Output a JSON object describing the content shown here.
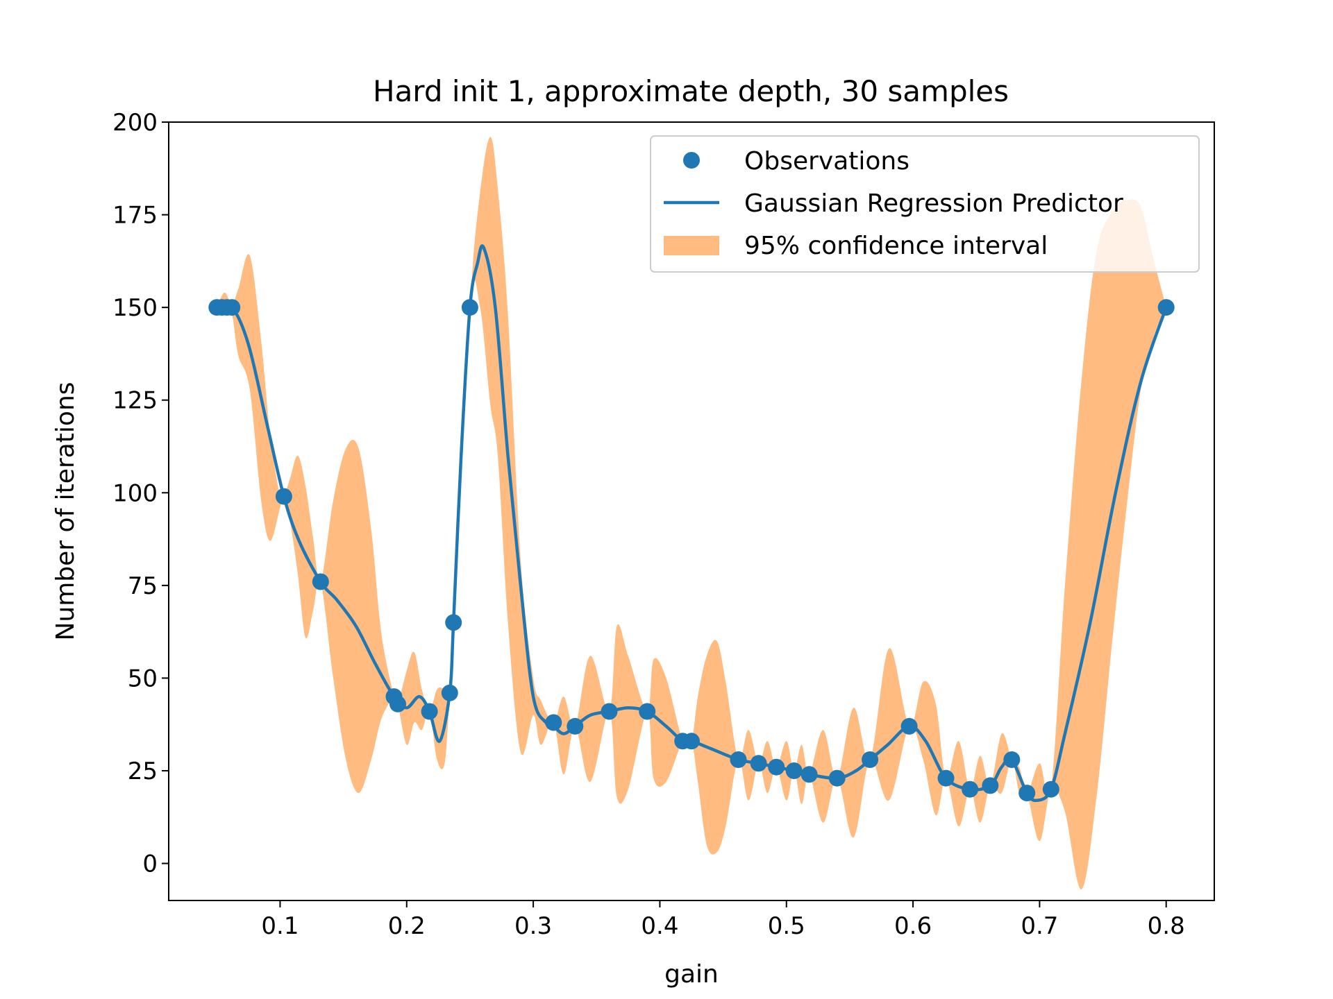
{
  "chart_data": {
    "type": "line",
    "title": "Hard init 1, approximate depth, 30 samples",
    "xlabel": "gain",
    "ylabel": "Number of iterations",
    "xlim": [
      0.012,
      0.838
    ],
    "ylim": [
      -10,
      200
    ],
    "xticks": [
      0.1,
      0.2,
      0.3,
      0.4,
      0.5,
      0.6,
      0.7,
      0.8
    ],
    "xtick_labels": [
      "0.1",
      "0.2",
      "0.3",
      "0.4",
      "0.5",
      "0.6",
      "0.7",
      "0.8"
    ],
    "yticks": [
      0,
      25,
      50,
      75,
      100,
      125,
      150,
      175,
      200
    ],
    "ytick_labels": [
      "0",
      "25",
      "50",
      "75",
      "100",
      "125",
      "150",
      "175",
      "200"
    ],
    "grid": false,
    "legend": {
      "position": "upper right",
      "entries": [
        {
          "label": "Observations",
          "kind": "marker"
        },
        {
          "label": "Gaussian Regression Predictor",
          "kind": "line"
        },
        {
          "label": "95% confidence interval",
          "kind": "patch"
        }
      ]
    },
    "colors": {
      "observations": "#1f77b4",
      "predictor": "#1f77b4",
      "confidence": "#ffbb80"
    },
    "observations": {
      "x": [
        0.05,
        0.054,
        0.058,
        0.062,
        0.103,
        0.132,
        0.19,
        0.193,
        0.218,
        0.234,
        0.237,
        0.25,
        0.316,
        0.333,
        0.36,
        0.39,
        0.418,
        0.425,
        0.462,
        0.478,
        0.492,
        0.506,
        0.518,
        0.54,
        0.566,
        0.597,
        0.626,
        0.645,
        0.661,
        0.678,
        0.69,
        0.709,
        0.8
      ],
      "y": [
        150,
        150,
        150,
        150,
        99,
        76,
        45,
        43,
        41,
        46,
        65,
        150,
        38,
        37,
        41,
        41,
        33,
        33,
        28,
        27,
        26,
        25,
        24,
        23,
        28,
        37,
        23,
        20,
        21,
        28,
        19,
        20,
        150
      ]
    },
    "predictor": {
      "x": [
        0.05,
        0.062,
        0.075,
        0.09,
        0.103,
        0.115,
        0.132,
        0.145,
        0.16,
        0.175,
        0.19,
        0.2,
        0.21,
        0.218,
        0.226,
        0.234,
        0.237,
        0.243,
        0.25,
        0.256,
        0.261,
        0.27,
        0.28,
        0.29,
        0.3,
        0.31,
        0.316,
        0.324,
        0.333,
        0.345,
        0.36,
        0.375,
        0.39,
        0.405,
        0.418,
        0.425,
        0.44,
        0.462,
        0.478,
        0.492,
        0.506,
        0.518,
        0.54,
        0.555,
        0.566,
        0.58,
        0.597,
        0.61,
        0.626,
        0.645,
        0.661,
        0.67,
        0.678,
        0.69,
        0.698,
        0.709,
        0.72,
        0.74,
        0.76,
        0.78,
        0.8
      ],
      "y": [
        150,
        150,
        140,
        118,
        99,
        87,
        76,
        71,
        64,
        54,
        45,
        42,
        45,
        41,
        33,
        46,
        65,
        110,
        150,
        162,
        166,
        150,
        110,
        75,
        45,
        38,
        37,
        35,
        37,
        40,
        41,
        42,
        41,
        37,
        33,
        33,
        31,
        28,
        27,
        26,
        25,
        24,
        23,
        25,
        28,
        32,
        37,
        33,
        23,
        20,
        21,
        26,
        28,
        19,
        17,
        20,
        35,
        65,
        100,
        130,
        150
      ]
    },
    "confidence_interval": {
      "x": [
        0.05,
        0.056,
        0.062,
        0.067,
        0.076,
        0.085,
        0.092,
        0.1,
        0.103,
        0.108,
        0.114,
        0.12,
        0.126,
        0.132,
        0.142,
        0.152,
        0.162,
        0.172,
        0.18,
        0.19,
        0.193,
        0.2,
        0.206,
        0.212,
        0.218,
        0.224,
        0.23,
        0.234,
        0.237,
        0.25,
        0.258,
        0.266,
        0.272,
        0.28,
        0.29,
        0.3,
        0.306,
        0.316,
        0.324,
        0.333,
        0.345,
        0.36,
        0.366,
        0.375,
        0.39,
        0.395,
        0.405,
        0.418,
        0.425,
        0.43,
        0.437,
        0.445,
        0.452,
        0.462,
        0.47,
        0.478,
        0.485,
        0.492,
        0.5,
        0.506,
        0.512,
        0.518,
        0.529,
        0.54,
        0.553,
        0.566,
        0.581,
        0.597,
        0.608,
        0.618,
        0.626,
        0.636,
        0.645,
        0.653,
        0.661,
        0.67,
        0.678,
        0.684,
        0.69,
        0.7,
        0.709,
        0.72,
        0.733,
        0.745,
        0.758,
        0.77,
        0.78,
        0.79,
        0.8
      ],
      "lower": [
        150,
        150,
        148,
        137,
        128,
        98,
        87,
        96,
        99,
        92,
        78,
        61,
        68,
        76,
        50,
        28,
        19,
        28,
        39,
        45,
        43,
        32,
        38,
        36,
        41,
        28,
        27,
        46,
        65,
        150,
        150,
        124,
        110,
        65,
        30,
        40,
        32,
        38,
        24,
        37,
        22,
        41,
        18,
        20,
        41,
        23,
        22,
        33,
        33,
        22,
        5,
        3,
        10,
        28,
        17,
        27,
        19,
        26,
        17,
        25,
        16,
        24,
        11,
        23,
        7,
        28,
        17,
        37,
        28,
        13,
        23,
        10,
        20,
        11,
        21,
        19,
        28,
        19,
        19,
        6,
        20,
        14,
        -7,
        18,
        62,
        100,
        128,
        142,
        150
      ],
      "upper": [
        150,
        154,
        151,
        155,
        164,
        141,
        116,
        99,
        99,
        104,
        110,
        102,
        88,
        76,
        98,
        112,
        112,
        90,
        62,
        45,
        43,
        52,
        57,
        47,
        41,
        47,
        47,
        46,
        65,
        150,
        181,
        196,
        182,
        148,
        82,
        50,
        44,
        38,
        45,
        37,
        56,
        41,
        64,
        56,
        41,
        55,
        50,
        33,
        33,
        45,
        56,
        60,
        49,
        28,
        36,
        27,
        33,
        26,
        33,
        25,
        32,
        24,
        36,
        23,
        42,
        28,
        58,
        37,
        49,
        43,
        23,
        33,
        20,
        29,
        21,
        35,
        28,
        26,
        19,
        27,
        20,
        75,
        130,
        165,
        176,
        179,
        177,
        163,
        150
      ]
    }
  },
  "plot_text": {
    "title": "Hard init 1, approximate depth, 30 samples",
    "xlabel": "gain",
    "ylabel": "Number of iterations",
    "legend_observations": "Observations",
    "legend_predictor": "Gaussian Regression Predictor",
    "legend_confidence": "95% confidence interval"
  }
}
